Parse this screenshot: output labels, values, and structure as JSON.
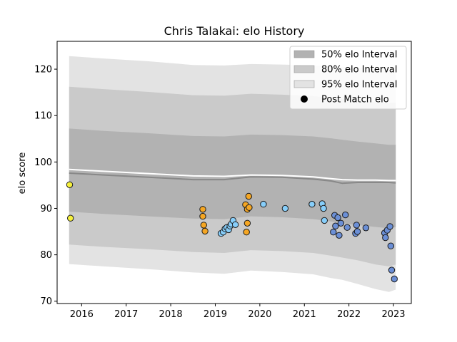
{
  "chart_data": {
    "type": "scatter",
    "title": "Chris Talakai: elo History",
    "xlabel": "",
    "ylabel": "elo score",
    "xlim": [
      2015.45,
      2023.4
    ],
    "ylim": [
      69.5,
      126.0
    ],
    "x_ticks": [
      {
        "value": 2016,
        "label": "2016"
      },
      {
        "value": 2017,
        "label": "2017"
      },
      {
        "value": 2018,
        "label": "2018"
      },
      {
        "value": 2019,
        "label": "2019"
      },
      {
        "value": 2020,
        "label": "2020"
      },
      {
        "value": 2021,
        "label": "2021"
      },
      {
        "value": 2022,
        "label": "2022"
      },
      {
        "value": 2023,
        "label": "2023"
      }
    ],
    "y_ticks": [
      {
        "value": 70,
        "label": "70"
      },
      {
        "value": 80,
        "label": "80"
      },
      {
        "value": 90,
        "label": "90"
      },
      {
        "value": 100,
        "label": "100"
      },
      {
        "value": 110,
        "label": "110"
      },
      {
        "value": 120,
        "label": "120"
      }
    ],
    "grid": false,
    "legend_position": "top-right",
    "bands_x": [
      2015.72,
      2016.5,
      2017.5,
      2018.5,
      2019.2,
      2019.8,
      2020.5,
      2021.2,
      2021.6,
      2021.85,
      2022.2,
      2022.6,
      2022.9,
      2023.05
    ],
    "mean_line": {
      "color": "#ffffff",
      "y": [
        98.4,
        98.0,
        97.5,
        97.0,
        96.9,
        97.2,
        97.1,
        96.8,
        96.4,
        96.2,
        96.1,
        96.1,
        96.0,
        96.0
      ]
    },
    "median_line": {
      "color": "#888888",
      "y": [
        97.6,
        97.2,
        96.7,
        96.2,
        96.2,
        96.8,
        96.7,
        96.3,
        95.9,
        95.4,
        95.6,
        95.6,
        95.6,
        95.5
      ]
    },
    "intervals": [
      {
        "label": "95% elo Interval",
        "color": "#e3e3e3",
        "lower": [
          78.0,
          77.5,
          76.9,
          76.2,
          75.9,
          76.6,
          76.3,
          75.8,
          75.0,
          74.6,
          73.7,
          72.6,
          72.0,
          72.5
        ],
        "upper": [
          122.8,
          122.3,
          121.7,
          120.9,
          120.8,
          121.1,
          121.0,
          120.8,
          120.6,
          120.5,
          120.3,
          120.1,
          120.0,
          120.0
        ]
      },
      {
        "label": "80% elo Interval",
        "color": "#cacaca",
        "lower": [
          82.2,
          81.7,
          81.2,
          80.6,
          80.4,
          81.0,
          80.8,
          80.4,
          79.8,
          79.4,
          78.8,
          77.9,
          77.5,
          77.9
        ],
        "upper": [
          116.2,
          115.7,
          115.1,
          114.4,
          114.3,
          114.7,
          114.5,
          114.2,
          113.8,
          113.6,
          113.3,
          112.9,
          112.7,
          112.8
        ]
      },
      {
        "label": "50% elo Interval",
        "color": "#b2b2b2",
        "lower": [
          89.3,
          88.8,
          88.3,
          87.8,
          87.7,
          88.3,
          88.1,
          87.7,
          87.2,
          86.8,
          86.4,
          86.0,
          85.7,
          86.0
        ],
        "upper": [
          107.2,
          106.7,
          106.2,
          105.6,
          105.5,
          105.9,
          105.8,
          105.5,
          105.1,
          104.8,
          104.4,
          104.0,
          103.7,
          103.7
        ]
      }
    ],
    "legend": {
      "items": [
        {
          "label": "50% elo Interval",
          "kind": "patch",
          "color": "#b2b2b2"
        },
        {
          "label": "80% elo Interval",
          "kind": "patch",
          "color": "#cacaca"
        },
        {
          "label": "95% elo Interval",
          "kind": "patch",
          "color": "#e3e3e3"
        },
        {
          "label": "Post Match elo",
          "kind": "dot",
          "color": "#000000"
        }
      ]
    },
    "series": [
      {
        "color": "#f5f03c",
        "points": [
          [
            2015.73,
            95.1
          ],
          [
            2015.75,
            87.9
          ]
        ]
      },
      {
        "color": "#f5a623",
        "points": [
          [
            2018.72,
            89.8
          ],
          [
            2018.72,
            88.3
          ],
          [
            2018.74,
            86.4
          ],
          [
            2018.77,
            85.1
          ],
          [
            2019.68,
            90.8
          ],
          [
            2019.72,
            89.8
          ],
          [
            2019.72,
            86.8
          ],
          [
            2019.7,
            84.9
          ],
          [
            2019.75,
            92.6
          ],
          [
            2019.76,
            90.2
          ]
        ]
      },
      {
        "color": "#87cefa",
        "points": [
          [
            2019.13,
            84.6
          ],
          [
            2019.18,
            84.9
          ],
          [
            2019.22,
            85.6
          ],
          [
            2019.26,
            85.9
          ],
          [
            2019.3,
            85.4
          ],
          [
            2019.33,
            86.2
          ],
          [
            2019.36,
            86.6
          ],
          [
            2019.4,
            87.4
          ],
          [
            2019.45,
            86.5
          ],
          [
            2020.08,
            90.9
          ],
          [
            2020.57,
            90.0
          ],
          [
            2021.17,
            90.9
          ],
          [
            2021.4,
            91.0
          ],
          [
            2021.43,
            90.0
          ],
          [
            2021.45,
            87.4
          ]
        ]
      },
      {
        "color": "#6b8fd6",
        "points": [
          [
            2021.65,
            84.9
          ],
          [
            2021.68,
            88.5
          ],
          [
            2021.7,
            86.2
          ],
          [
            2021.75,
            88.0
          ],
          [
            2021.78,
            84.2
          ],
          [
            2021.82,
            86.8
          ],
          [
            2021.92,
            88.6
          ],
          [
            2021.96,
            85.9
          ],
          [
            2022.15,
            84.6
          ],
          [
            2022.17,
            86.4
          ],
          [
            2022.19,
            85.0
          ],
          [
            2022.38,
            85.8
          ],
          [
            2022.8,
            84.7
          ],
          [
            2022.82,
            83.7
          ],
          [
            2022.86,
            85.3
          ],
          [
            2022.92,
            86.1
          ],
          [
            2022.94,
            81.9
          ],
          [
            2022.96,
            76.7
          ],
          [
            2023.02,
            74.8
          ]
        ]
      }
    ]
  }
}
